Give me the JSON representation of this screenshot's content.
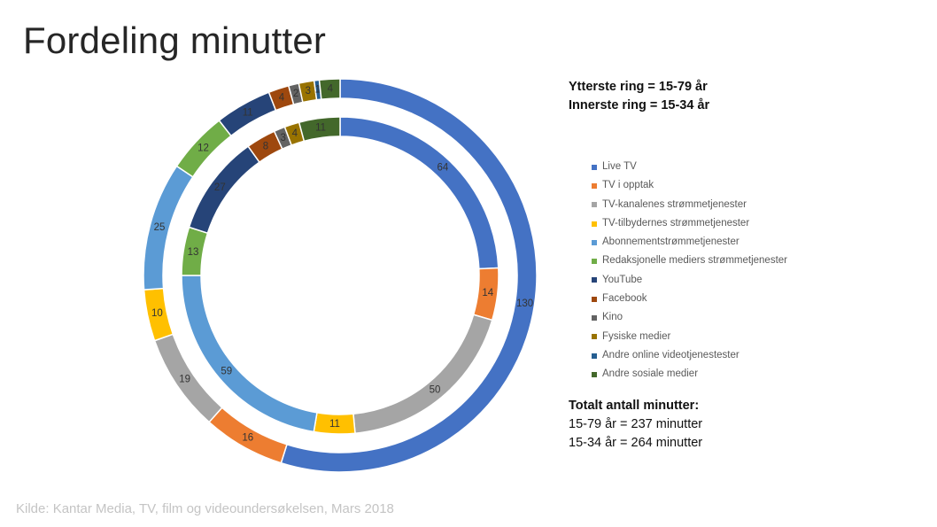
{
  "title": "Fordeling minutter",
  "ring_info": {
    "outer": "Ytterste ring = 15-79 år",
    "inner": "Innerste ring = 15-34 år"
  },
  "totals": {
    "heading": "Totalt antall minutter:",
    "line1": "15-79 år = 237 minutter",
    "line2": "15-34 år = 264 minutter"
  },
  "source": "Kilde: Kantar Media, TV, film og videoundersøkelsen,  Mars 2018",
  "chart_data": {
    "type": "pie",
    "subtype": "doughnut",
    "title": "Fordeling minutter",
    "legend_position": "right",
    "categories": [
      "Live TV",
      "TV i opptak",
      "TV-kanalenes strømmetjenester",
      "TV-tilbydernes strømmetjenester",
      "Abonnementstrømmetjenester",
      "Redaksjonelle mediers strømmetjenester",
      "YouTube",
      "Facebook",
      "Kino",
      "Fysiske medier",
      "Andre online videotjenestester",
      "Andre sosiale medier"
    ],
    "colors": [
      "#4472c4",
      "#ed7d31",
      "#a5a5a5",
      "#ffc000",
      "#5b9bd5",
      "#70ad47",
      "#264478",
      "#9e480e",
      "#636363",
      "#997300",
      "#255e91",
      "#43682b"
    ],
    "series": [
      {
        "name": "Ytterste ring = 15-79 år",
        "ring": "outer",
        "values": [
          130,
          16,
          19,
          10,
          25,
          12,
          11,
          4,
          2,
          3,
          1,
          4
        ]
      },
      {
        "name": "Innerste ring = 15-34 år",
        "ring": "inner",
        "values": [
          64,
          14,
          50,
          11,
          59,
          13,
          27,
          8,
          3,
          4,
          0,
          11
        ]
      }
    ]
  }
}
